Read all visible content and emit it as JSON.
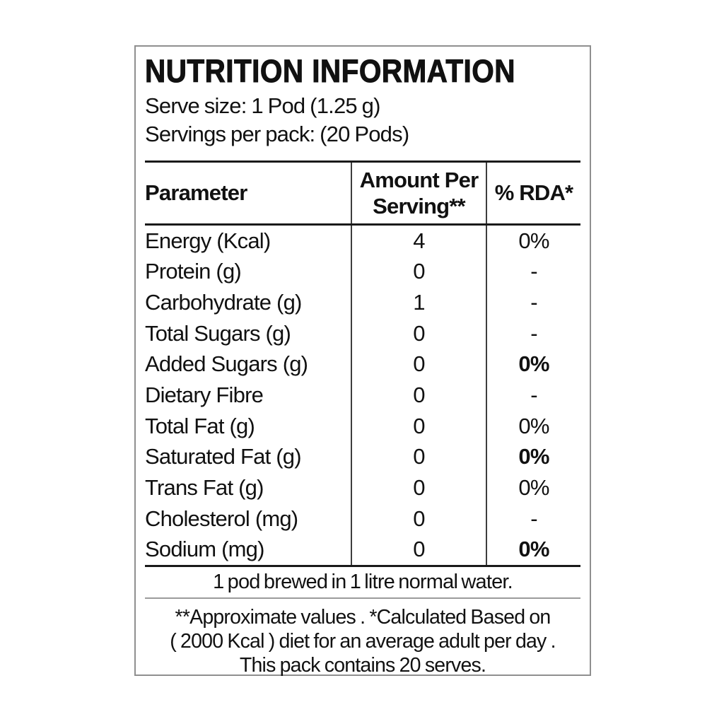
{
  "header": {
    "title": "NUTRITION INFORMATION",
    "serve_size": "Serve size: 1 Pod (1.25 g)",
    "servings_per_pack": "Servings per pack: (20 Pods)"
  },
  "table": {
    "columns": [
      "Parameter",
      "Amount Per Serving**",
      "% RDA*"
    ],
    "rows": [
      {
        "parameter": "Energy (Kcal)",
        "amount": "4",
        "rda": "0%",
        "rda_bold": false
      },
      {
        "parameter": "Protein (g)",
        "amount": "0",
        "rda": "-",
        "rda_bold": false
      },
      {
        "parameter": "Carbohydrate (g)",
        "amount": "1",
        "rda": "-",
        "rda_bold": false
      },
      {
        "parameter": "Total Sugars (g)",
        "amount": "0",
        "rda": "-",
        "rda_bold": false
      },
      {
        "parameter": "Added Sugars (g)",
        "amount": "0",
        "rda": "0%",
        "rda_bold": true
      },
      {
        "parameter": "Dietary Fibre",
        "amount": "0",
        "rda": "-",
        "rda_bold": false
      },
      {
        "parameter": "Total Fat (g)",
        "amount": "0",
        "rda": "0%",
        "rda_bold": false
      },
      {
        "parameter": "Saturated Fat (g)",
        "amount": "0",
        "rda": "0%",
        "rda_bold": true
      },
      {
        "parameter": "Trans Fat (g)",
        "amount": "0",
        "rda": "0%",
        "rda_bold": false
      },
      {
        "parameter": "Cholesterol (mg)",
        "amount": "0",
        "rda": "-",
        "rda_bold": false
      },
      {
        "parameter": "Sodium (mg)",
        "amount": "0",
        "rda": "0%",
        "rda_bold": true
      }
    ]
  },
  "notes": {
    "brew": "1 pod brewed in 1 litre normal water.",
    "footnote_line1": "**Approximate values . *Calculated Based on",
    "footnote_line2": "( 2000 Kcal ) diet for an average adult per day .",
    "footnote_line3": "This pack contains 20 serves."
  },
  "colors": {
    "outer_border": "#8f8f8f",
    "table_rule": "#1a1a1a",
    "column_divider": "#3d3d3d",
    "gray_rule": "#9c9c9c",
    "text": "#111111",
    "background": "#ffffff"
  }
}
